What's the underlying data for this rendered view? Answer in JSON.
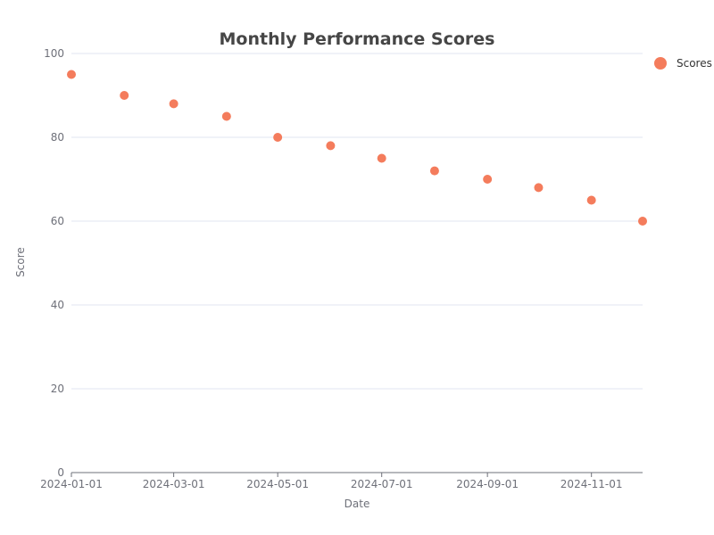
{
  "chart_data": {
    "type": "scatter",
    "title": "Monthly Performance Scores",
    "xlabel": "Date",
    "ylabel": "Score",
    "ylim": [
      0,
      100
    ],
    "yticks": [
      0,
      20,
      40,
      60,
      80,
      100
    ],
    "xlim": [
      "2024-01-01",
      "2024-12-01"
    ],
    "xticks": [
      "2024-01-01",
      "2024-03-01",
      "2024-05-01",
      "2024-07-01",
      "2024-09-01",
      "2024-11-01"
    ],
    "grid": true,
    "legend_position": "top-right",
    "series": [
      {
        "name": "Scores",
        "color": "#f47c5c",
        "points": [
          {
            "x": "2024-01-01",
            "y": 95
          },
          {
            "x": "2024-02-01",
            "y": 90
          },
          {
            "x": "2024-03-01",
            "y": 88
          },
          {
            "x": "2024-04-01",
            "y": 85
          },
          {
            "x": "2024-05-01",
            "y": 80
          },
          {
            "x": "2024-06-01",
            "y": 78
          },
          {
            "x": "2024-07-01",
            "y": 75
          },
          {
            "x": "2024-08-01",
            "y": 72
          },
          {
            "x": "2024-09-01",
            "y": 70
          },
          {
            "x": "2024-10-01",
            "y": 68
          },
          {
            "x": "2024-11-01",
            "y": 65
          },
          {
            "x": "2024-12-01",
            "y": 60
          }
        ]
      }
    ]
  }
}
